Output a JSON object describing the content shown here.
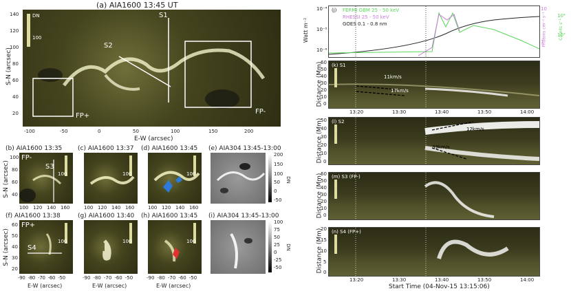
{
  "panels": {
    "a": {
      "title": "(a) AIA1600 13:45 UT",
      "slit1": "S1",
      "slit2": "S2",
      "fp_plus": "FP+",
      "fp_minus": "FP-",
      "xlabel": "E-W (arcsec)",
      "ylabel": "S-N (arcsec)",
      "cbar_unit": "DN",
      "cbar_tick": "100",
      "xticks": [
        "-100",
        "-50",
        "0",
        "50",
        "100",
        "150",
        "200"
      ],
      "yticks": [
        "140",
        "120",
        "100",
        "80",
        "60",
        "40",
        "20"
      ]
    },
    "b": {
      "title": "(b) AIA1600 13:35",
      "label_fp": "FP-",
      "slit": "S3",
      "yticks": [
        "100",
        "80",
        "60",
        "40"
      ],
      "xticks": [
        "100",
        "120",
        "140",
        "160"
      ],
      "ylabel": "S-N (arcsec)"
    },
    "c": {
      "title": "(c) AIA1600 13:37",
      "xticks": [
        "100",
        "120",
        "140",
        "160"
      ]
    },
    "d": {
      "title": "(d) AIA1600 13:45",
      "xticks": [
        "100",
        "120",
        "140",
        "160"
      ]
    },
    "e": {
      "title": "(e) AIA304 13:45-13:00",
      "cbar_ticks": [
        "200",
        "150",
        "100",
        "50",
        "0",
        "-50"
      ],
      "cbar_unit": "DN"
    },
    "f": {
      "title": "(f) AIA1600 13:38",
      "label_fp": "FP+",
      "slit": "S4",
      "yticks": [
        "60",
        "50",
        "40",
        "30",
        "20"
      ],
      "xticks": [
        "-90",
        "-80",
        "-70",
        "-60",
        "-50"
      ],
      "xlabel": "E-W (arcsec)",
      "ylabel": "S-N (arcsec)"
    },
    "g": {
      "title": "(g) AIA1600 13:40",
      "xticks": [
        "-90",
        "-80",
        "-70",
        "-60",
        "-50"
      ],
      "xlabel": "E-W (arcsec)"
    },
    "h": {
      "title": "(h) AIA1600 13:45",
      "xticks": [
        "-90",
        "-80",
        "-70",
        "-60",
        "-50"
      ],
      "xlabel": "E-W (arcsec)"
    },
    "i": {
      "title": "(i) AIA304 13:45-13:00",
      "cbar_ticks": [
        "100",
        "75",
        "50",
        "25",
        "0",
        "-25",
        "-50"
      ],
      "cbar_unit": "DN"
    },
    "small_cbar_tick": "100"
  },
  "right": {
    "j": {
      "label": "(j)",
      "legend": [
        "FERMI GBM 25 - 50 keV",
        "RHESSI 25 - 50 keV",
        "GOES 0.1 - 0.8 nm"
      ],
      "legend_colors": [
        "#5ad65a",
        "#c87ad8",
        "#222222"
      ],
      "ylabel": "Watt m⁻²",
      "ylabel_right1": "Photons cm⁻² s⁻¹",
      "ylabel_right2": "Counts s⁻¹",
      "yticks_left": [
        "10⁻⁴",
        "10⁻⁵",
        "10⁻⁶"
      ],
      "yticks_r1": [
        "10",
        "1"
      ],
      "yticks_r2": [
        "10⁴",
        "10³"
      ]
    },
    "k": {
      "label": "(k) S1",
      "speed1": "11km/s",
      "speed2": "17km/s",
      "yticks": [
        "60",
        "50",
        "40",
        "30",
        "20",
        "10",
        "0"
      ]
    },
    "l": {
      "label": "(l) S2",
      "speed1": "12km/s",
      "speed2": "33km/s",
      "yticks": [
        "50",
        "40",
        "30",
        "20",
        "10",
        "0"
      ]
    },
    "m": {
      "label": "(m) S3 (FP-)",
      "yticks": [
        "60",
        "50",
        "40",
        "30",
        "20",
        "10",
        "0"
      ]
    },
    "n": {
      "label": "(n) S4 (FP+)",
      "yticks": [
        "20",
        "15",
        "10",
        "5",
        "0"
      ]
    },
    "ylabel": "Distance (Mm)",
    "cbar_ticks": [
      "1000",
      "100"
    ],
    "cbar_unit": "DN",
    "xticks": [
      "13:20",
      "13:30",
      "13:40",
      "13:50",
      "14:00"
    ],
    "xlabel": "Start Time (04-Nov-15 13:15:06)"
  }
}
